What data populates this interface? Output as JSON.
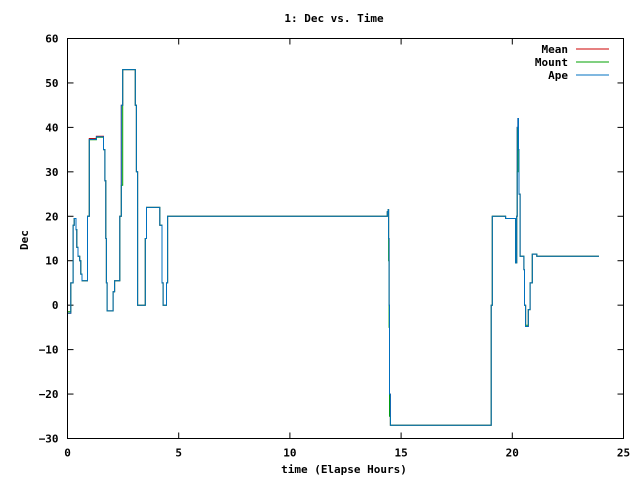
{
  "chart_data": {
    "type": "line",
    "title": "1: Dec vs. Time",
    "xlabel": "time (Elapse Hours)",
    "ylabel": "Dec",
    "xlim": [
      0,
      25
    ],
    "ylim": [
      -30,
      60
    ],
    "xticks": [
      "0",
      "5",
      "10",
      "15",
      "20",
      "25"
    ],
    "yticks": [
      "−30",
      "−20",
      "−10",
      "0",
      "10",
      "20",
      "30",
      "40",
      "50",
      "60"
    ],
    "grid": false,
    "legend_position": "top-right",
    "series": [
      {
        "name": "Mean",
        "color": "#cc0000",
        "x": [
          0,
          0.12,
          0.15,
          0.25,
          0.3,
          0.33,
          0.38,
          0.42,
          0.47,
          0.55,
          0.6,
          0.65,
          0.85,
          0.9,
          0.98,
          1.05,
          1.3,
          1.5,
          1.62,
          1.68,
          1.72,
          1.75,
          1.78,
          1.85,
          1.9,
          2.05,
          2.12,
          2.3,
          2.35,
          2.42,
          2.48,
          2.55,
          2.62,
          3.0,
          3.05,
          3.1,
          3.15,
          3.4,
          3.5,
          3.55,
          4.1,
          4.15,
          4.25,
          4.3,
          4.38,
          4.45,
          4.5,
          14.3,
          14.38,
          14.42,
          14.44,
          14.46,
          14.48,
          14.52,
          14.58,
          14.6,
          19.0,
          19.02,
          19.05,
          19.1,
          19.5,
          19.55,
          19.65,
          19.7,
          20.15,
          20.18,
          20.2,
          20.22,
          20.25,
          20.28,
          20.3,
          20.35,
          20.5,
          20.52,
          20.55,
          20.6,
          20.65,
          20.7,
          20.72,
          20.8,
          20.9,
          20.95,
          21.05,
          21.1,
          21.4,
          21.5,
          23.9
        ],
        "y": [
          -1.8,
          -1.8,
          5,
          18,
          19.5,
          19.5,
          17,
          13,
          11,
          10,
          7,
          5.5,
          5.5,
          20,
          37.5,
          37.5,
          38,
          38,
          35,
          28,
          15,
          5,
          -1.3,
          -1.3,
          -1.3,
          3,
          5.5,
          5.5,
          20,
          45,
          53,
          53,
          53,
          53,
          45,
          30,
          0,
          0,
          15,
          22,
          22,
          18,
          5,
          0,
          0,
          5,
          20,
          20,
          21,
          21.5,
          15,
          0,
          -20,
          -27,
          -27,
          -27,
          -27,
          -27,
          0,
          20,
          20,
          20,
          20,
          19.5,
          9.5,
          9.5,
          20,
          40,
          42,
          35,
          25,
          11,
          11,
          8,
          0,
          -4.8,
          -4.8,
          -4.8,
          -1,
          5,
          11.5,
          11.5,
          11.5,
          11,
          11,
          11,
          11
        ]
      },
      {
        "name": "Mount",
        "color": "#00a000",
        "x": [
          0,
          0.12,
          0.15,
          0.25,
          0.3,
          0.33,
          0.38,
          0.42,
          0.47,
          0.55,
          0.6,
          0.65,
          0.85,
          0.9,
          0.98,
          1.05,
          1.3,
          1.5,
          1.62,
          1.68,
          1.72,
          1.75,
          1.78,
          1.85,
          1.9,
          2.05,
          2.12,
          2.3,
          2.35,
          2.42,
          2.48,
          2.55,
          2.62,
          3.0,
          3.05,
          3.1,
          3.15,
          3.4,
          3.5,
          3.55,
          4.1,
          4.15,
          4.25,
          4.3,
          4.38,
          4.45,
          4.5,
          14.3,
          14.38,
          14.42,
          14.44,
          14.46,
          14.48,
          14.52,
          14.58,
          14.6,
          19.0,
          19.02,
          19.05,
          19.1,
          19.5,
          19.55,
          19.65,
          19.7,
          20.15,
          20.18,
          20.2,
          20.22,
          20.25,
          20.28,
          20.3,
          20.35,
          20.5,
          20.52,
          20.55,
          20.6,
          20.65,
          20.7,
          20.72,
          20.8,
          20.9,
          20.95,
          21.05,
          21.1,
          21.4,
          21.5,
          23.9
        ],
        "y": [
          -1.5,
          -1.5,
          5,
          18,
          19.5,
          19.5,
          17,
          13,
          11,
          10,
          7,
          5.5,
          5.5,
          20,
          37.2,
          37.2,
          37.8,
          37.8,
          35,
          28,
          15,
          5,
          -1.3,
          -1.3,
          -1.3,
          3,
          5.5,
          5.5,
          20,
          27,
          53,
          53,
          53,
          53,
          45,
          30,
          0,
          0,
          15,
          22,
          22,
          18,
          5,
          0,
          0,
          5,
          20,
          20,
          21,
          21.5,
          10,
          -5,
          -25,
          -27,
          -27,
          -27,
          -27,
          -27,
          0,
          20,
          20,
          20,
          20,
          19.5,
          9.5,
          9.5,
          20,
          30,
          40,
          35,
          25,
          11,
          11,
          8,
          0,
          -4.5,
          -4.5,
          -4.5,
          -1,
          5,
          11.5,
          11.5,
          11.5,
          11,
          11,
          11,
          11
        ]
      },
      {
        "name": "Ape",
        "color": "#0070c0",
        "x": [
          0,
          0.12,
          0.15,
          0.25,
          0.3,
          0.33,
          0.38,
          0.42,
          0.47,
          0.55,
          0.6,
          0.65,
          0.85,
          0.9,
          0.98,
          1.05,
          1.3,
          1.5,
          1.62,
          1.68,
          1.72,
          1.75,
          1.78,
          1.85,
          1.9,
          2.05,
          2.12,
          2.3,
          2.35,
          2.42,
          2.48,
          2.55,
          2.62,
          3.0,
          3.05,
          3.1,
          3.15,
          3.4,
          3.5,
          3.55,
          4.1,
          4.15,
          4.25,
          4.3,
          4.38,
          4.45,
          4.5,
          14.3,
          14.38,
          14.42,
          14.44,
          14.46,
          14.48,
          14.52,
          14.58,
          14.6,
          19.0,
          19.02,
          19.05,
          19.1,
          19.5,
          19.55,
          19.65,
          19.7,
          20.15,
          20.18,
          20.2,
          20.22,
          20.25,
          20.28,
          20.3,
          20.35,
          20.5,
          20.52,
          20.55,
          20.6,
          20.65,
          20.7,
          20.72,
          20.8,
          20.9,
          20.95,
          21.05,
          21.1,
          21.4,
          21.5,
          23.9
        ],
        "y": [
          -1.8,
          -1.8,
          5,
          18,
          19.5,
          19.5,
          17,
          13,
          11,
          10,
          7,
          5.5,
          5.5,
          20,
          37.3,
          37.3,
          37.9,
          37.9,
          35,
          28,
          15,
          5,
          -1.3,
          -1.3,
          -1.3,
          3,
          5.5,
          5.5,
          20,
          45,
          53,
          53,
          53,
          53,
          45,
          30,
          0,
          0,
          15,
          22,
          22,
          18,
          5,
          0,
          0,
          5,
          20,
          20,
          21,
          21.5,
          15,
          0,
          -20,
          -27,
          -27,
          -27,
          -27,
          -27,
          0,
          20,
          20,
          20,
          20,
          19.5,
          9.5,
          9.5,
          20,
          40,
          42,
          35,
          25,
          11,
          11,
          8,
          0,
          -4.8,
          -4.8,
          -4.8,
          -1,
          5,
          11.5,
          11.5,
          11.5,
          11,
          11,
          11,
          11
        ]
      }
    ]
  }
}
